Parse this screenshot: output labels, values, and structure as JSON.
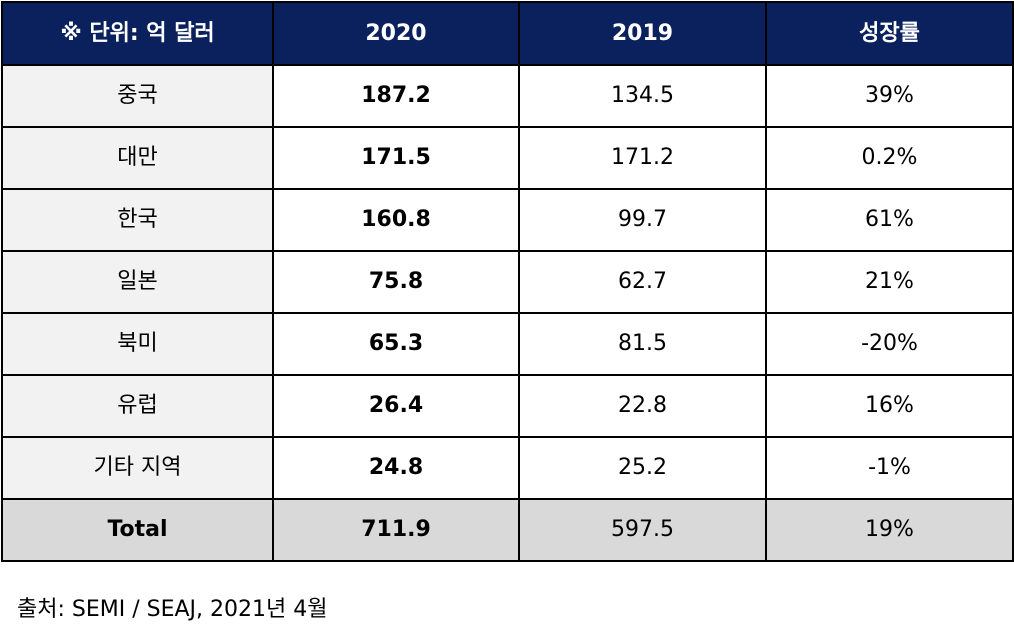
{
  "table": {
    "headers": {
      "unit": "※ 단위: 억 달러",
      "y2020": "2020",
      "y2019": "2019",
      "growth": "성장률"
    },
    "rows": [
      {
        "region": "중국",
        "y2020": "187.2",
        "y2019": "134.5",
        "growth": "39%"
      },
      {
        "region": "대만",
        "y2020": "171.5",
        "y2019": "171.2",
        "growth": "0.2%"
      },
      {
        "region": "한국",
        "y2020": "160.8",
        "y2019": "99.7",
        "growth": "61%"
      },
      {
        "region": "일본",
        "y2020": "75.8",
        "y2019": "62.7",
        "growth": "21%"
      },
      {
        "region": "북미",
        "y2020": "65.3",
        "y2019": "81.5",
        "growth": "-20%"
      },
      {
        "region": "유럽",
        "y2020": "26.4",
        "y2019": "22.8",
        "growth": "16%"
      },
      {
        "region": "기타 지역",
        "y2020": "24.8",
        "y2019": "25.2",
        "growth": "-1%"
      }
    ],
    "total": {
      "region": "Total",
      "y2020": "711.9",
      "y2019": "597.5",
      "growth": "19%"
    }
  },
  "source": "출처: SEMI / SEAJ, 2021년 4월",
  "colors": {
    "header_bg": "#0b215e",
    "header_text": "#ffffff",
    "region_bg": "#f2f2f2",
    "total_bg": "#d9d9d9",
    "border": "#000000"
  }
}
